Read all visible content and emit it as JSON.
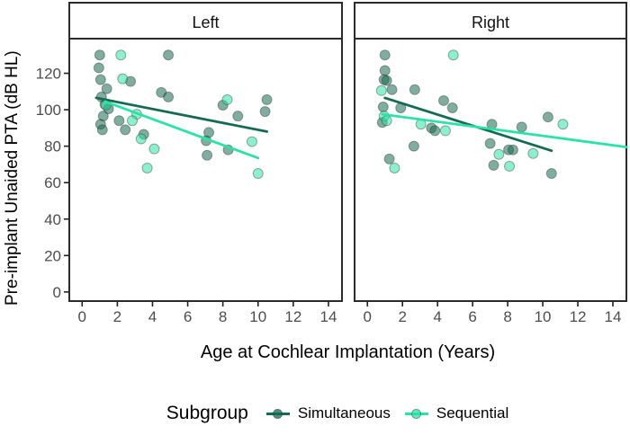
{
  "figure": {
    "y_axis_title": "Pre-implant Unaided PTA (dB HL)",
    "x_axis_title": "Age at Cochlear Implantation (Years)"
  },
  "legend": {
    "title": "Subgroup",
    "entries": [
      {
        "label": "Simultaneous",
        "color": "#156B52"
      },
      {
        "label": "Sequential",
        "color": "#2BE3A4"
      }
    ]
  },
  "chart_data": {
    "type": "scatter",
    "title": "",
    "xlabel": "Age at Cochlear Implantation (Years)",
    "ylabel": "Pre-implant Unaided PTA (dB HL)",
    "xlim": [
      -0.73,
      14.77
    ],
    "ylim": [
      -5,
      139
    ],
    "x_ticks": [
      0,
      2,
      4,
      6,
      8,
      10,
      12,
      14
    ],
    "y_ticks": [
      0,
      20,
      40,
      60,
      80,
      100,
      120
    ],
    "grid": false,
    "legend_position": "bottom",
    "point_style": {
      "radius": 5.5,
      "fill_opacity": 0.55,
      "stroke": "#3c3c3c",
      "stroke_opacity": 0.45
    },
    "colors": {
      "tick_label": "#4d4d4d",
      "panel_border": "#2b2b2b",
      "strip_text": "#111111"
    },
    "facets": [
      {
        "label": "Left",
        "series": [
          {
            "name": "Simultaneous",
            "color": "#156B52",
            "points": [
              [
                1.0,
                130
              ],
              [
                4.9,
                130
              ],
              [
                0.95,
                123
              ],
              [
                1.05,
                116.5
              ],
              [
                2.75,
                115.5
              ],
              [
                1.4,
                111.5
              ],
              [
                1.1,
                107
              ],
              [
                4.5,
                109.5
              ],
              [
                4.9,
                107
              ],
              [
                1.3,
                103
              ],
              [
                1.5,
                100.5
              ],
              [
                1.2,
                96.5
              ],
              [
                1.05,
                92
              ],
              [
                1.15,
                89
              ],
              [
                2.1,
                94
              ],
              [
                2.45,
                89
              ],
              [
                3.5,
                86.5
              ],
              [
                8.0,
                102.5
              ],
              [
                10.5,
                105.5
              ],
              [
                10.4,
                99
              ],
              [
                8.85,
                96.5
              ],
              [
                7.2,
                87.5
              ],
              [
                7.05,
                83
              ],
              [
                8.3,
                78
              ],
              [
                7.1,
                75
              ]
            ],
            "trend": [
              [
                0.8,
                106.5
              ],
              [
                10.5,
                88
              ]
            ]
          },
          {
            "name": "Sequential",
            "color": "#2BE3A4",
            "points": [
              [
                2.2,
                130
              ],
              [
                2.3,
                117
              ],
              [
                1.35,
                102.5
              ],
              [
                3.1,
                97.5
              ],
              [
                2.85,
                94
              ],
              [
                3.35,
                84
              ],
              [
                4.1,
                78.5
              ],
              [
                3.7,
                68
              ],
              [
                8.25,
                105.5
              ],
              [
                9.65,
                82.5
              ],
              [
                10.0,
                65
              ]
            ],
            "trend": [
              [
                1.3,
                104.5
              ],
              [
                10.0,
                73.5
              ]
            ]
          }
        ]
      },
      {
        "label": "Right",
        "series": [
          {
            "name": "Simultaneous",
            "color": "#156B52",
            "points": [
              [
                1.0,
                130
              ],
              [
                1.0,
                121.5
              ],
              [
                0.95,
                116.5
              ],
              [
                1.1,
                116
              ],
              [
                1.4,
                111
              ],
              [
                2.7,
                111
              ],
              [
                4.35,
                105
              ],
              [
                4.85,
                101
              ],
              [
                1.9,
                101
              ],
              [
                0.9,
                101.5
              ],
              [
                0.85,
                93
              ],
              [
                3.65,
                90
              ],
              [
                3.85,
                88.5
              ],
              [
                2.65,
                80
              ],
              [
                1.25,
                73
              ],
              [
                7.1,
                92
              ],
              [
                7.0,
                81.5
              ],
              [
                8.8,
                90.5
              ],
              [
                10.3,
                96
              ],
              [
                8.05,
                78
              ],
              [
                8.3,
                78
              ],
              [
                7.2,
                69.5
              ],
              [
                10.5,
                65
              ]
            ],
            "trend": [
              [
                1.0,
                106.5
              ],
              [
                10.5,
                77.5
              ]
            ]
          },
          {
            "name": "Sequential",
            "color": "#2BE3A4",
            "points": [
              [
                4.9,
                130
              ],
              [
                0.8,
                110.5
              ],
              [
                0.95,
                96.5
              ],
              [
                1.1,
                94
              ],
              [
                3.05,
                92
              ],
              [
                4.45,
                88.5
              ],
              [
                1.55,
                68
              ],
              [
                11.15,
                92
              ],
              [
                7.5,
                75.5
              ],
              [
                9.45,
                76
              ],
              [
                8.1,
                69
              ]
            ],
            "trend": [
              [
                0.85,
                97.5
              ],
              [
                14.77,
                79.5
              ]
            ]
          }
        ]
      }
    ]
  }
}
